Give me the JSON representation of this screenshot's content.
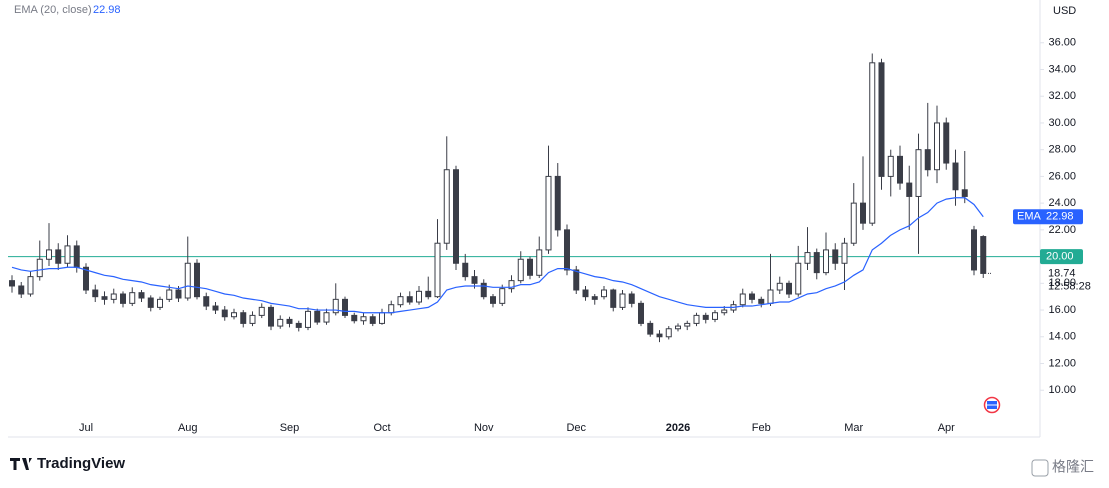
{
  "chart_data": {
    "type": "candlestick",
    "currency": "USD",
    "up_color": "#ffffff",
    "down_color": "#3a3d47",
    "outline_color": "#3a3d47",
    "categories": [
      null,
      null,
      null,
      null,
      null,
      null,
      null,
      null,
      "Jul",
      null,
      null,
      null,
      null,
      null,
      null,
      null,
      null,
      null,
      null,
      "Aug",
      null,
      null,
      null,
      null,
      null,
      null,
      null,
      null,
      null,
      null,
      "Sep",
      null,
      null,
      null,
      null,
      null,
      null,
      null,
      null,
      null,
      "Oct",
      null,
      null,
      null,
      null,
      null,
      null,
      null,
      null,
      null,
      null,
      "Nov",
      null,
      null,
      null,
      null,
      null,
      null,
      null,
      null,
      null,
      "Dec",
      null,
      null,
      null,
      null,
      null,
      null,
      null,
      null,
      null,
      null,
      "2026",
      null,
      null,
      null,
      null,
      null,
      null,
      null,
      null,
      "Feb",
      null,
      null,
      null,
      null,
      null,
      null,
      null,
      null,
      null,
      "Mar",
      null,
      null,
      null,
      null,
      null,
      null,
      null,
      null,
      null,
      "Apr",
      null,
      null,
      null,
      null
    ],
    "open": [
      18.2,
      17.8,
      17.2,
      18.5,
      19.8,
      20.5,
      19.5,
      20.8,
      19.2,
      17.5,
      17.0,
      16.8,
      17.2,
      16.5,
      17.3,
      16.9,
      16.2,
      16.8,
      17.5,
      16.9,
      19.5,
      17.0,
      16.3,
      16.0,
      15.5,
      15.8,
      15.0,
      15.6,
      16.2,
      14.8,
      15.3,
      15.0,
      14.7,
      15.9,
      15.1,
      15.8,
      16.8,
      15.6,
      15.2,
      15.5,
      15.0,
      15.8,
      16.4,
      17.0,
      16.6,
      17.4,
      17.0,
      21.0,
      26.5,
      19.5,
      18.5,
      18.0,
      17.0,
      16.5,
      17.6,
      18.2,
      19.8,
      18.6,
      20.5,
      26.0,
      22.0,
      19.0,
      17.5,
      17.0,
      17.0,
      17.5,
      16.2,
      17.2,
      16.5,
      15.0,
      14.2,
      14.0,
      14.6,
      14.8,
      15.0,
      15.6,
      15.3,
      15.8,
      16.0,
      16.4,
      17.2,
      16.8,
      16.5,
      17.5,
      18.0,
      17.2,
      19.5,
      20.3,
      18.8,
      20.5,
      19.5,
      21.0,
      24.0,
      22.5,
      34.5,
      26.0,
      27.5,
      25.5,
      24.5,
      28.0,
      26.5,
      30.0,
      27.0,
      25.0,
      22.0,
      21.5
    ],
    "high": [
      18.6,
      18.1,
      18.9,
      21.2,
      22.5,
      21.0,
      21.6,
      21.2,
      19.5,
      17.9,
      17.4,
      17.6,
      17.4,
      17.7,
      17.5,
      17.1,
      17.0,
      17.9,
      17.8,
      21.5,
      19.8,
      17.3,
      16.6,
      16.3,
      16.1,
      16.0,
      15.9,
      16.5,
      16.4,
      15.6,
      15.5,
      15.2,
      16.2,
      16.1,
      16.1,
      18.0,
      17.0,
      15.8,
      15.8,
      15.7,
      16.1,
      16.7,
      17.3,
      17.4,
      17.8,
      18.5,
      22.8,
      29.0,
      26.8,
      20.2,
      19.0,
      18.3,
      17.2,
      17.9,
      18.6,
      20.4,
      20.0,
      21.5,
      28.3,
      27.0,
      22.4,
      19.3,
      17.8,
      17.2,
      17.8,
      17.6,
      17.5,
      17.4,
      16.7,
      15.2,
      14.5,
      14.8,
      15.0,
      15.2,
      15.8,
      15.8,
      16.0,
      16.3,
      16.7,
      17.6,
      17.4,
      17.0,
      20.2,
      18.5,
      18.2,
      20.8,
      22.2,
      20.6,
      21.8,
      21.0,
      21.4,
      25.5,
      27.5,
      35.2,
      34.8,
      28.0,
      28.3,
      26.8,
      29.2,
      31.5,
      31.3,
      30.4,
      28.0,
      27.9,
      22.3,
      21.6
    ],
    "low": [
      17.3,
      16.9,
      17.0,
      18.2,
      19.3,
      19.0,
      19.2,
      18.8,
      17.2,
      16.6,
      16.4,
      16.5,
      16.2,
      16.3,
      16.6,
      15.9,
      16.0,
      16.6,
      16.6,
      16.7,
      16.8,
      16.0,
      15.7,
      15.2,
      15.3,
      14.7,
      14.8,
      15.4,
      14.5,
      14.6,
      14.7,
      14.4,
      14.5,
      14.9,
      14.9,
      15.6,
      15.4,
      15.0,
      14.9,
      14.8,
      14.9,
      15.6,
      16.2,
      16.4,
      16.4,
      16.8,
      16.9,
      20.5,
      19.0,
      18.2,
      17.6,
      16.8,
      16.2,
      16.3,
      17.3,
      18.0,
      18.3,
      18.4,
      20.2,
      21.5,
      18.6,
      17.2,
      16.7,
      16.4,
      16.8,
      15.9,
      16.0,
      16.2,
      14.8,
      14.0,
      13.6,
      13.8,
      14.4,
      14.5,
      14.8,
      15.0,
      15.1,
      15.6,
      15.8,
      16.2,
      16.5,
      16.2,
      16.3,
      17.2,
      16.9,
      17.0,
      19.0,
      18.3,
      18.6,
      19.0,
      17.5,
      20.8,
      22.0,
      22.3,
      25.0,
      24.5,
      25.0,
      22.0,
      20.2,
      26.0,
      25.5,
      26.5,
      23.8,
      24.0,
      18.6,
      18.4
    ],
    "close": [
      17.8,
      17.2,
      18.5,
      19.8,
      20.5,
      19.5,
      20.8,
      19.2,
      17.5,
      17.0,
      16.8,
      17.2,
      16.5,
      17.3,
      16.9,
      16.2,
      16.8,
      17.5,
      16.9,
      19.5,
      17.0,
      16.3,
      16.0,
      15.5,
      15.8,
      15.0,
      15.6,
      16.2,
      14.8,
      15.3,
      15.0,
      14.7,
      15.9,
      15.1,
      15.8,
      16.8,
      15.6,
      15.2,
      15.5,
      15.0,
      15.8,
      16.4,
      17.0,
      16.6,
      17.4,
      17.0,
      21.0,
      26.5,
      19.5,
      18.5,
      18.0,
      17.0,
      16.5,
      17.6,
      18.2,
      19.8,
      18.6,
      20.5,
      26.0,
      22.0,
      19.0,
      17.5,
      17.0,
      16.8,
      17.5,
      16.2,
      17.2,
      16.5,
      15.0,
      14.2,
      14.0,
      14.6,
      14.8,
      15.0,
      15.6,
      15.3,
      15.8,
      16.0,
      16.4,
      17.2,
      16.8,
      16.5,
      17.5,
      18.0,
      17.2,
      19.5,
      20.3,
      18.8,
      20.5,
      19.5,
      21.0,
      24.0,
      22.5,
      34.5,
      26.0,
      27.5,
      25.5,
      24.5,
      28.0,
      26.5,
      30.0,
      27.0,
      25.0,
      24.5,
      19.0,
      18.74
    ],
    "ema": {
      "name": "EMA (20, close)",
      "tag": "EMA",
      "color": "#2962ff",
      "values": [
        19.2,
        19.0,
        18.9,
        19.0,
        19.1,
        19.1,
        19.2,
        19.2,
        19.0,
        18.8,
        18.6,
        18.5,
        18.3,
        18.2,
        18.1,
        17.9,
        17.8,
        17.7,
        17.6,
        17.8,
        17.7,
        17.6,
        17.4,
        17.2,
        17.1,
        16.9,
        16.8,
        16.7,
        16.5,
        16.4,
        16.3,
        16.1,
        16.1,
        16.0,
        16.0,
        16.0,
        15.9,
        15.9,
        15.8,
        15.8,
        15.8,
        15.8,
        15.9,
        16.0,
        16.1,
        16.2,
        16.6,
        17.5,
        17.7,
        17.8,
        17.8,
        17.8,
        17.7,
        17.7,
        17.7,
        17.9,
        17.9,
        18.1,
        18.8,
        19.1,
        19.1,
        18.9,
        18.7,
        18.5,
        18.4,
        18.2,
        18.1,
        17.9,
        17.6,
        17.3,
        17.0,
        16.8,
        16.6,
        16.4,
        16.3,
        16.2,
        16.2,
        16.2,
        16.2,
        16.3,
        16.3,
        16.4,
        16.5,
        16.6,
        16.6,
        16.9,
        17.2,
        17.3,
        17.6,
        17.8,
        18.1,
        18.6,
        19.0,
        20.5,
        21.0,
        21.6,
        22.0,
        22.3,
        22.9,
        23.3,
        24.0,
        24.3,
        24.4,
        24.4,
        23.9,
        22.98
      ]
    },
    "price_line": {
      "value": 20,
      "label": "20.00",
      "color": "#22ab94"
    },
    "countdown": "12:58:28",
    "ylim": [
      6.5,
      39.2
    ],
    "yticks": [
      {
        "value": 10,
        "label": "10.00"
      },
      {
        "value": 12,
        "label": "12.00"
      },
      {
        "value": 14,
        "label": "14.00"
      },
      {
        "value": 16,
        "label": "16.00"
      },
      {
        "value": 18,
        "label": "18.00"
      },
      {
        "value": 20,
        "label": "20.00"
      },
      {
        "value": 22,
        "label": "22.00"
      },
      {
        "value": 24,
        "label": "24.00"
      },
      {
        "value": 26,
        "label": "26.00"
      },
      {
        "value": 28,
        "label": "28.00"
      },
      {
        "value": 30,
        "label": "30.00"
      },
      {
        "value": 32,
        "label": "32.00"
      },
      {
        "value": 34,
        "label": "34.00"
      },
      {
        "value": 36,
        "label": "36.00"
      }
    ],
    "grid": false
  },
  "branding": {
    "logo": "TradingView",
    "watermark": "格隆汇"
  }
}
